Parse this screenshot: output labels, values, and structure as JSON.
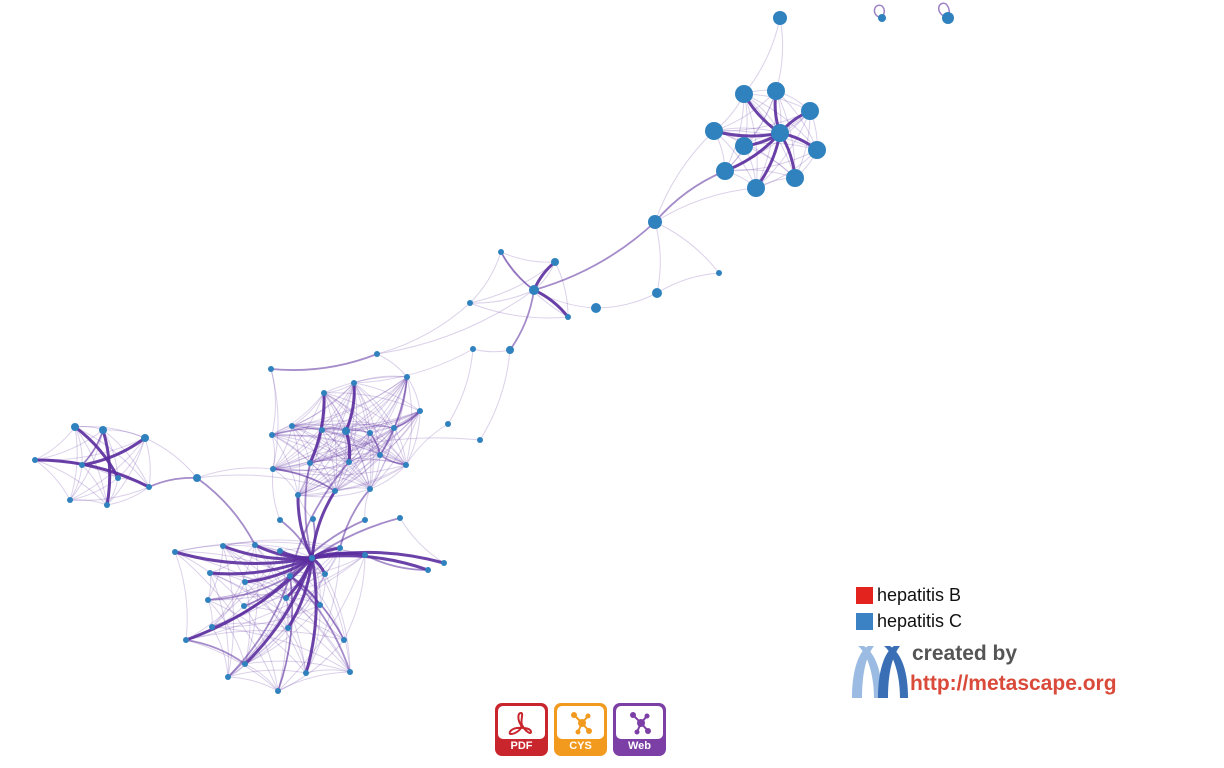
{
  "legend": {
    "items": [
      {
        "label": "hepatitis B",
        "color": "#e3231d"
      },
      {
        "label": "hepatitis C",
        "color": "#3b82c4"
      }
    ]
  },
  "credit": {
    "created_by": "created by",
    "url": "http://metascape.org"
  },
  "exports": {
    "pdf_label": "PDF",
    "cys_label": "CYS",
    "web_label": "Web"
  },
  "colors": {
    "node": "#2f82bd",
    "edge": "#5b2d9e",
    "pdf": "#c8262c",
    "cys": "#f29a1d",
    "web": "#7b3fa5"
  },
  "icons": [
    "pdf-icon",
    "cytoscape-icon",
    "web-network-icon",
    "metascape-logo"
  ]
}
